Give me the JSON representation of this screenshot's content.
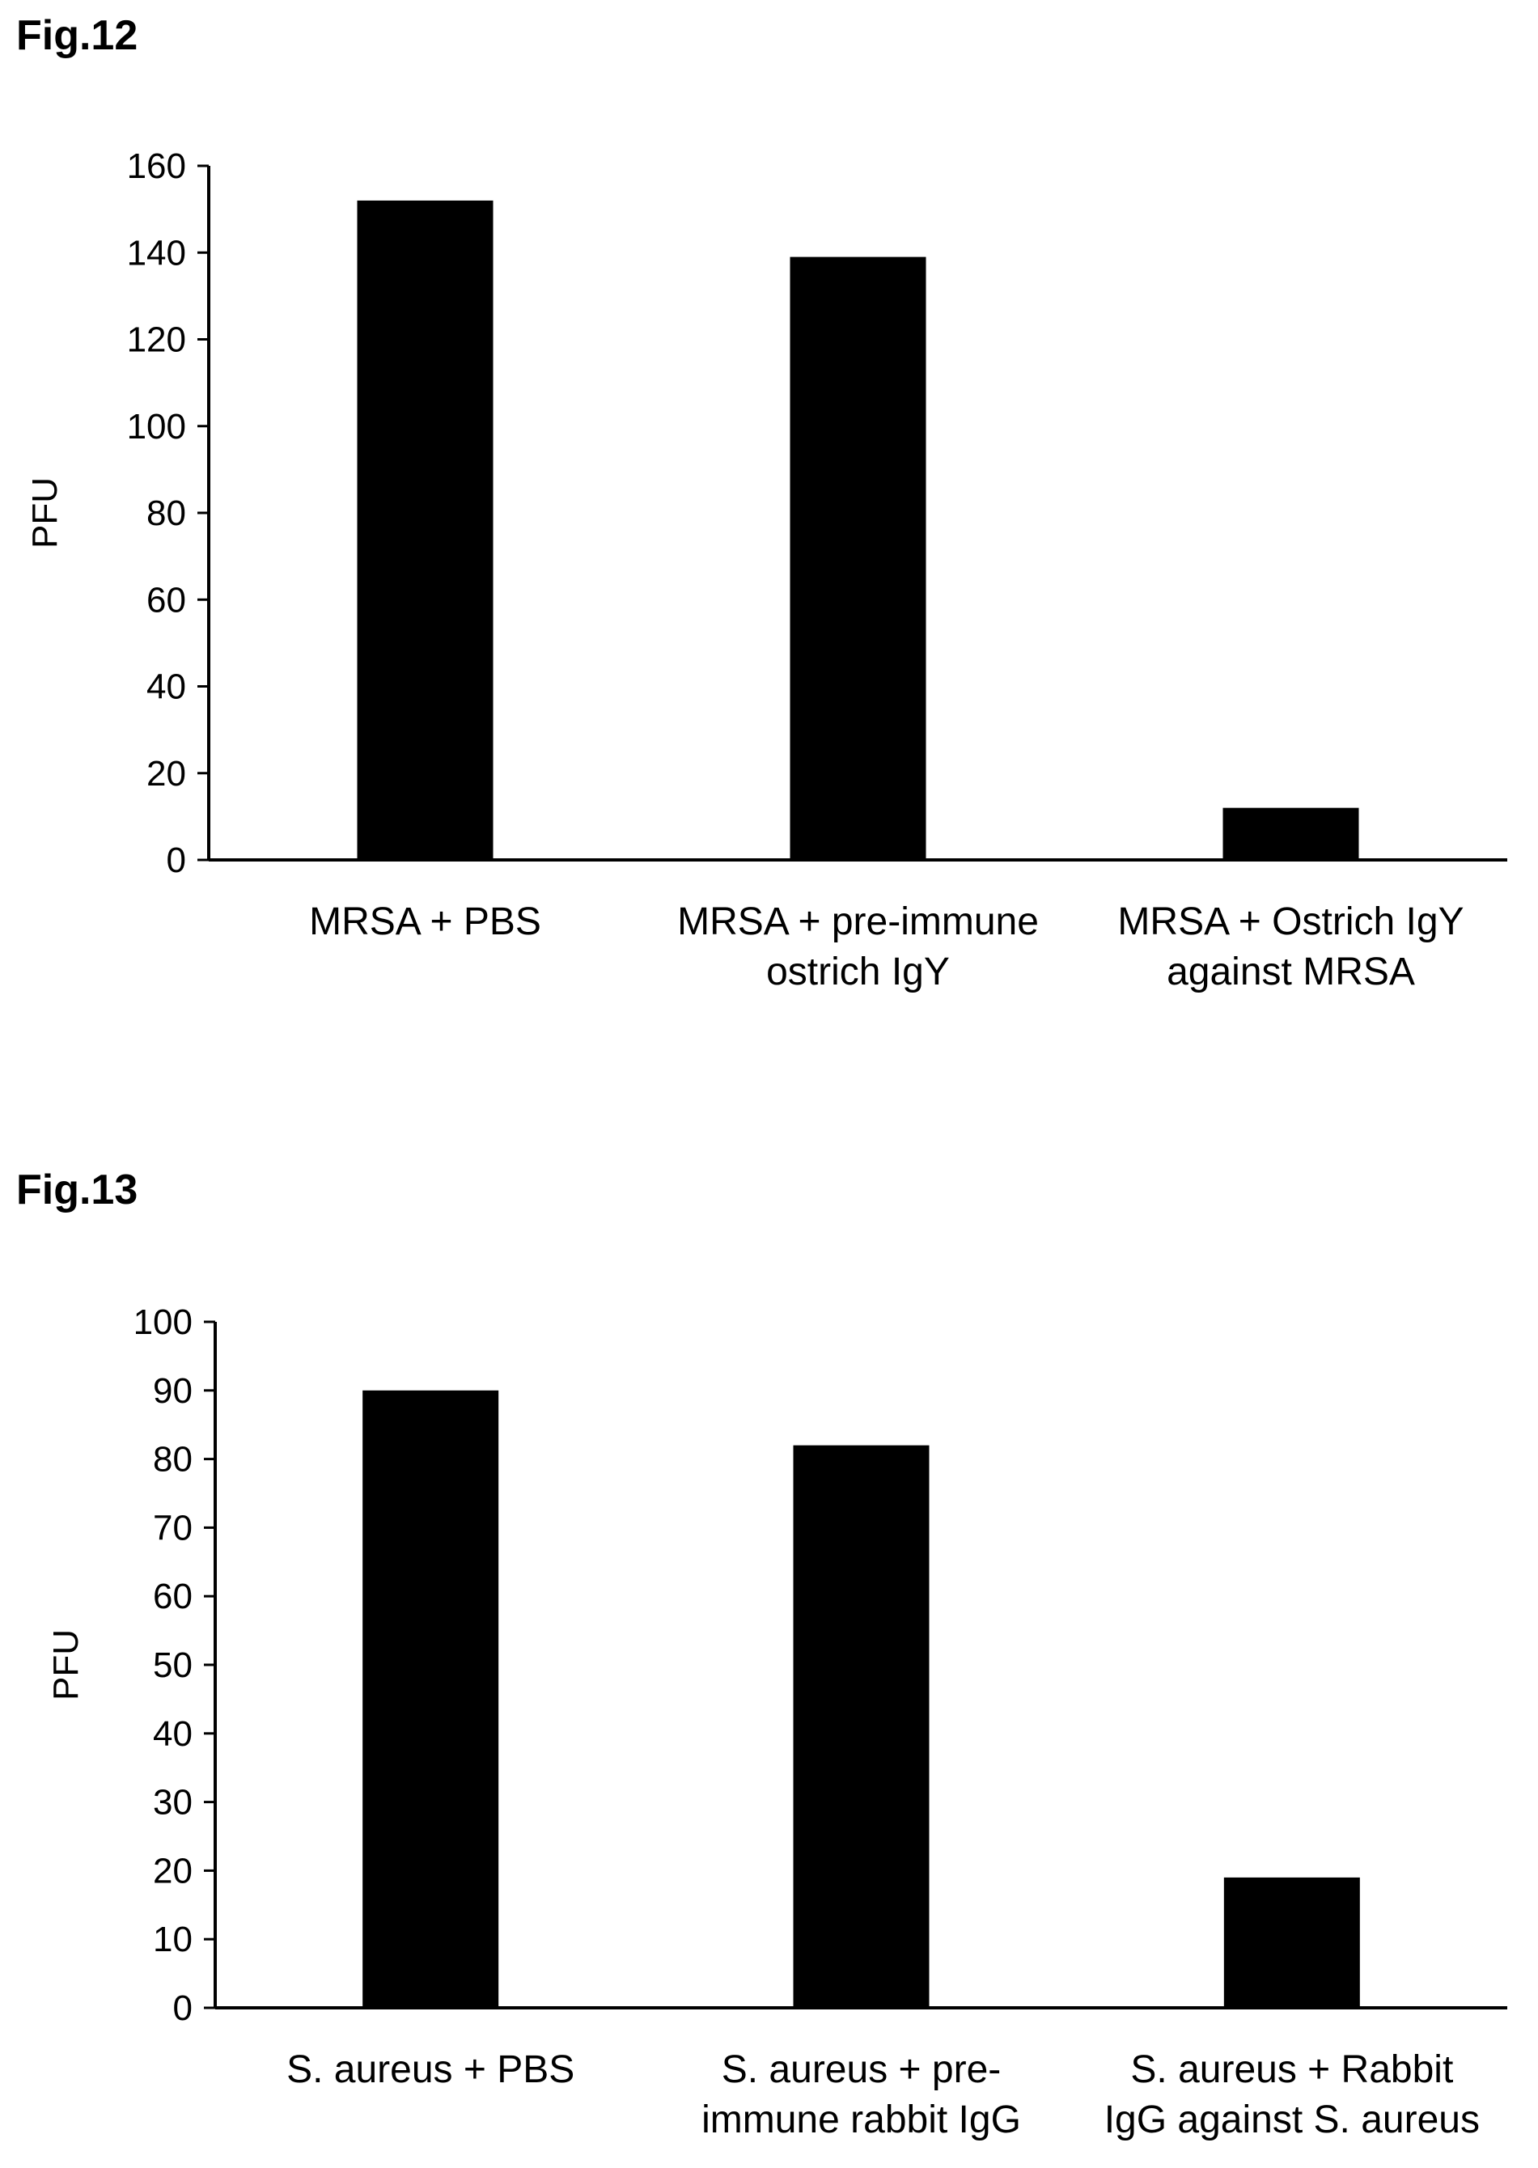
{
  "figures": [
    {
      "label": "Fig.12"
    },
    {
      "label": "Fig.13"
    }
  ],
  "chart_data": [
    {
      "type": "bar",
      "title": "",
      "ylabel": "PFU",
      "xlabel": "",
      "ylim": [
        0,
        160
      ],
      "yticks": [
        0,
        20,
        40,
        60,
        80,
        100,
        120,
        140,
        160
      ],
      "categories": [
        [
          "MRSA + PBS"
        ],
        [
          "MRSA + pre-immune",
          "ostrich IgY"
        ],
        [
          "MRSA + Ostrich IgY",
          "against MRSA"
        ]
      ],
      "values": [
        152,
        139,
        12
      ],
      "grid": false,
      "bar_color": "#000000"
    },
    {
      "type": "bar",
      "title": "",
      "ylabel": "PFU",
      "xlabel": "",
      "ylim": [
        0,
        100
      ],
      "yticks": [
        0,
        10,
        20,
        30,
        40,
        50,
        60,
        70,
        80,
        90,
        100
      ],
      "categories": [
        [
          "S. aureus + PBS"
        ],
        [
          "S. aureus + pre-",
          "immune rabbit IgG"
        ],
        [
          "S. aureus + Rabbit",
          "IgG against S. aureus"
        ]
      ],
      "values": [
        90,
        82,
        19
      ],
      "grid": false,
      "bar_color": "#000000"
    }
  ]
}
